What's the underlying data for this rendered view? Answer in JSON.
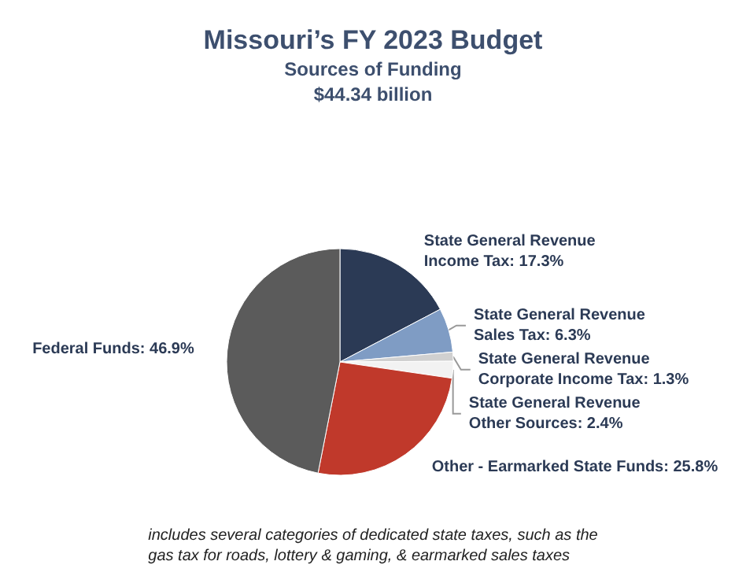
{
  "chart_data": {
    "type": "pie",
    "title": "Missouri’s FY 2023 Budget",
    "subtitle": "Sources of Funding\n$44.34 billion",
    "categories": [
      "State General Revenue\nIncome Tax",
      "State General Revenue\nSales Tax",
      "State General Revenue\nCorporate Income Tax",
      "State General Revenue\nOther Sources",
      "Other - Earmarked State Funds",
      "Federal Funds"
    ],
    "value_labels": [
      "17.3%",
      "6.3%",
      "1.3%",
      "2.4%",
      "25.8%",
      "46.9%"
    ],
    "values": [
      17.3,
      6.3,
      1.3,
      2.4,
      25.8,
      46.9
    ],
    "colors": [
      "#2b3a55",
      "#7f9cc4",
      "#d0d0d0",
      "#f2f2f2",
      "#c0392b",
      "#5b5b5b"
    ],
    "annotations": [
      "includes several categories of dedicated state taxes, such as the\ngas tax for roads, lottery & gaming, & earmarked sales taxes"
    ]
  }
}
